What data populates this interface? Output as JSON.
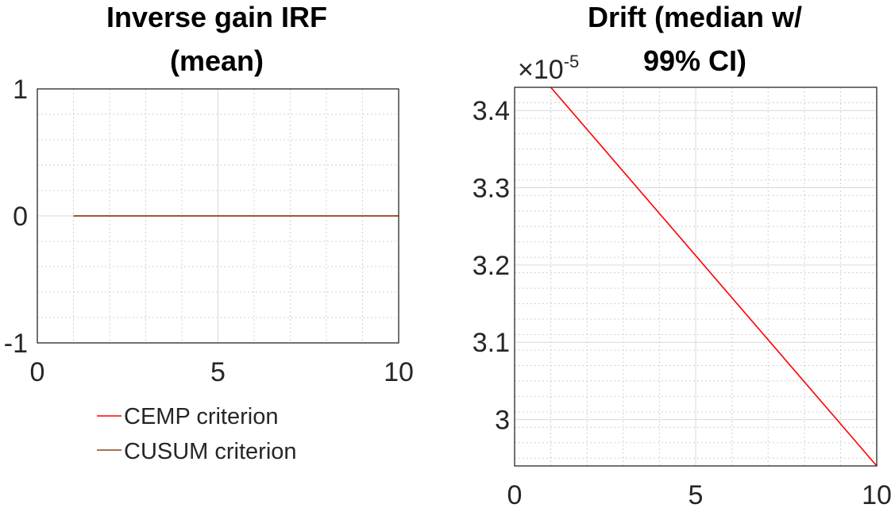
{
  "chart_data": [
    {
      "type": "line",
      "title": [
        "Inverse gain IRF",
        "(mean)"
      ],
      "xlim": [
        0,
        10
      ],
      "ylim": [
        -1,
        1
      ],
      "xticks": [
        "0",
        "5",
        "10"
      ],
      "yticks": [
        "-1",
        "0",
        "1"
      ],
      "grid": true,
      "series": [
        {
          "name": "CEMP criterion",
          "color": "#ff0000",
          "x": [
            1,
            10
          ],
          "y": [
            0,
            0
          ]
        },
        {
          "name": "CUSUM criterion",
          "color": "#8b4513",
          "x": [
            1,
            10
          ],
          "y": [
            0,
            0
          ]
        }
      ],
      "legend": "bottom"
    },
    {
      "type": "line",
      "title": [
        "Drift (median w/",
        "99% CI)"
      ],
      "xlim": [
        0,
        10
      ],
      "ylim": [
        2.94,
        3.43
      ],
      "y_exponent_label": "×10",
      "y_exponent_power": "-5",
      "xticks": [
        "0",
        "5",
        "10"
      ],
      "yticks": [
        {
          "value": 3.0,
          "label": "3"
        },
        {
          "value": 3.1,
          "label": "3.1"
        },
        {
          "value": 3.2,
          "label": "3.2"
        },
        {
          "value": 3.3,
          "label": "3.3"
        },
        {
          "value": 3.4,
          "label": "3.4"
        }
      ],
      "grid": true,
      "series": [
        {
          "color": "#ff0000",
          "x": [
            1,
            10
          ],
          "y": [
            3.43,
            2.94
          ]
        }
      ]
    }
  ]
}
